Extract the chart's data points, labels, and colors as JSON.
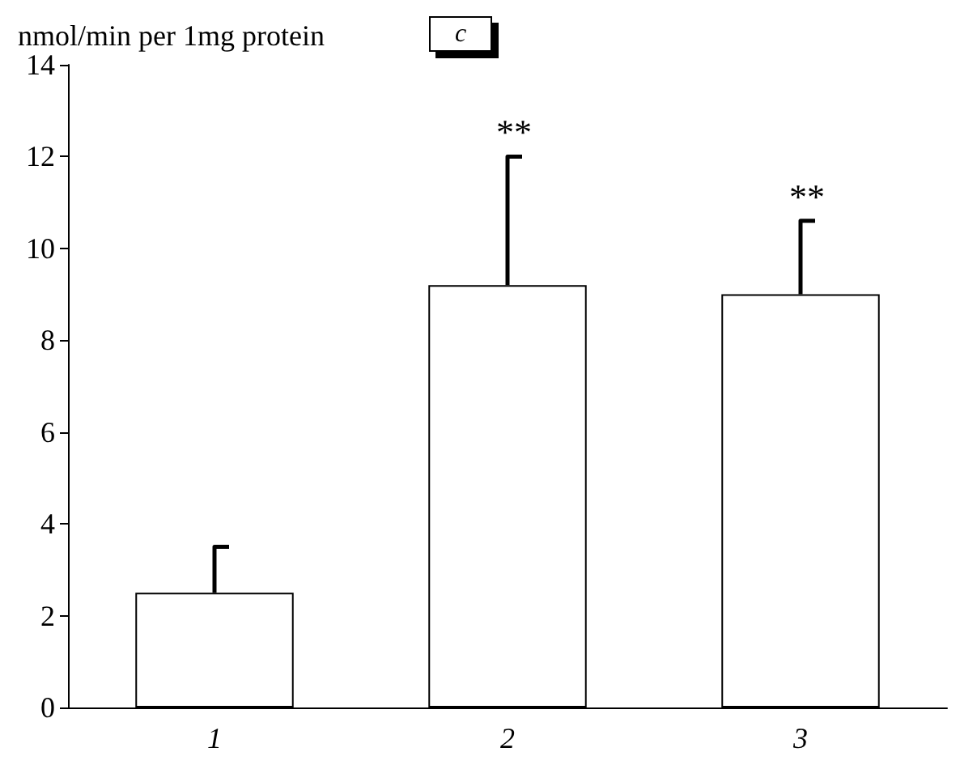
{
  "chart_data": {
    "type": "bar",
    "title": "c",
    "ylabel": "nmol/min per 1mg protein",
    "categories": [
      "1",
      "2",
      "3"
    ],
    "values": [
      2.5,
      9.2,
      9.0
    ],
    "errors": [
      [
        2.5,
        3.5
      ],
      [
        9.2,
        12.0
      ],
      [
        9.0,
        10.6
      ]
    ],
    "color": "#ffffff",
    "ylim": [
      0,
      14
    ],
    "yticks": [
      0,
      2,
      4,
      6,
      8,
      10,
      12,
      14
    ],
    "grid": false,
    "annotations": [
      {
        "text": "**",
        "x": "2",
        "y": 12.0
      },
      {
        "text": "**",
        "x": "3",
        "y": 10.6
      }
    ]
  }
}
